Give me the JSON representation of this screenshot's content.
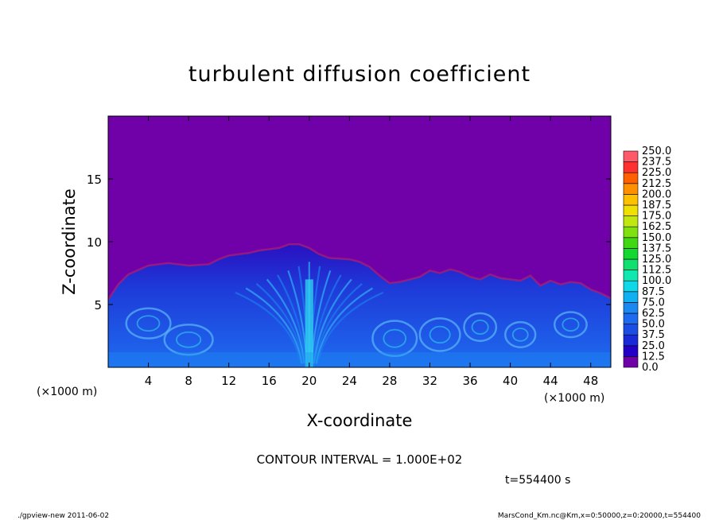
{
  "chart_data": {
    "type": "heatmap",
    "title": "turbulent diffusion coefficient",
    "xlabel": "X-coordinate",
    "ylabel": "Z-coordinate",
    "x_unit": "(×1000 m)",
    "y_unit": "(×1000 m)",
    "xlim": [
      0,
      50
    ],
    "ylim": [
      0,
      20
    ],
    "x_ticks": [
      "4",
      "8",
      "12",
      "16",
      "20",
      "24",
      "28",
      "32",
      "36",
      "40",
      "44",
      "48"
    ],
    "y_ticks": [
      "5",
      "10",
      "15"
    ],
    "background_value": 0.0,
    "contour_interval": "CONTOUR INTERVAL = 1.000E+02",
    "time_label": "t=554400 s",
    "colorbar": {
      "levels": [
        "0.0",
        "12.5",
        "25.0",
        "37.5",
        "50.0",
        "62.5",
        "75.0",
        "87.5",
        "100.0",
        "112.5",
        "125.0",
        "137.5",
        "150.0",
        "162.5",
        "175.0",
        "187.5",
        "200.0",
        "212.5",
        "225.0",
        "237.5",
        "250.0"
      ],
      "colors": [
        "#7000a8",
        "#2200c8",
        "#1a2ad8",
        "#1c4ee6",
        "#1e6af0",
        "#1e88f2",
        "#10b0f2",
        "#10d8e8",
        "#10e8b0",
        "#10e070",
        "#12d830",
        "#40d812",
        "#80e010",
        "#c0e810",
        "#f0e000",
        "#ffc000",
        "#ff9000",
        "#ff6000",
        "#ff3030",
        "#ff5a6a",
        "#ff8c96"
      ]
    },
    "boundary_layer_top": [
      [
        0,
        5.4
      ],
      [
        1,
        6.6
      ],
      [
        2,
        7.4
      ],
      [
        4,
        8.1
      ],
      [
        6,
        8.3
      ],
      [
        8,
        8.1
      ],
      [
        10,
        8.2
      ],
      [
        11,
        8.6
      ],
      [
        12,
        8.9
      ],
      [
        13,
        9.0
      ],
      [
        14,
        9.1
      ],
      [
        15,
        9.3
      ],
      [
        16,
        9.4
      ],
      [
        17,
        9.5
      ],
      [
        18,
        9.8
      ],
      [
        19,
        9.8
      ],
      [
        20,
        9.5
      ],
      [
        21,
        9.0
      ],
      [
        22,
        8.7
      ],
      [
        24,
        8.6
      ],
      [
        25,
        8.4
      ],
      [
        26,
        8.0
      ],
      [
        27,
        7.3
      ],
      [
        28,
        6.7
      ],
      [
        29,
        6.8
      ],
      [
        30,
        7.0
      ],
      [
        31,
        7.2
      ],
      [
        32,
        7.7
      ],
      [
        33,
        7.5
      ],
      [
        34,
        7.8
      ],
      [
        35,
        7.6
      ],
      [
        36,
        7.2
      ],
      [
        37,
        7.0
      ],
      [
        38,
        7.4
      ],
      [
        39,
        7.1
      ],
      [
        40,
        7.0
      ],
      [
        41,
        6.9
      ],
      [
        42,
        7.3
      ],
      [
        43,
        6.5
      ],
      [
        44,
        6.9
      ],
      [
        45,
        6.6
      ],
      [
        46,
        6.8
      ],
      [
        47,
        6.7
      ],
      [
        48,
        6.2
      ],
      [
        49,
        5.9
      ],
      [
        50,
        5.5
      ]
    ]
  },
  "footer": {
    "left": "./gpview-new  2011-06-02",
    "right": "MarsCond_Km.nc@Km,x=0:50000,z=0:20000,t=554400"
  }
}
